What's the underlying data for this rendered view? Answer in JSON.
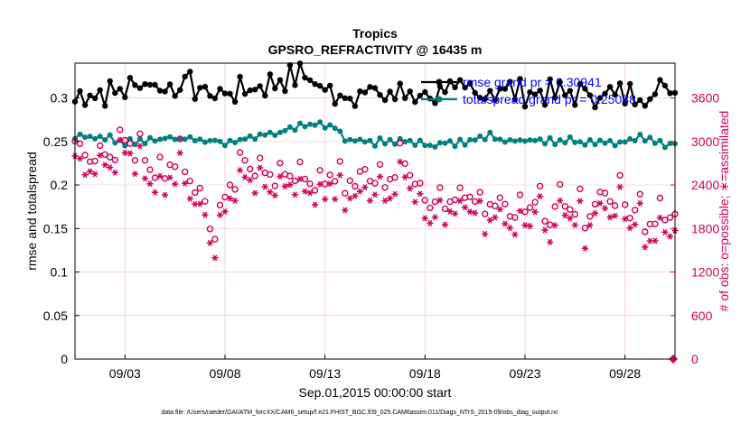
{
  "chart_data": {
    "type": "line",
    "title": "Tropics",
    "subtitle": "GPSRO_REFRACTIVITY @ 16435 m",
    "xlabel": "Sep.01,2015 00:00:00 start",
    "ylabel_left": "rmse and totalspread",
    "ylabel_right": "# of obs: o=possible; ∗=assimilated",
    "footer": "data file: /Users/raeder/DAI/ATM_forcXX/CAM6_setup/f.e21.FHIST_BGC.f09_025.CAM6assim.011/Diags_NTrS_2015-09/obs_diag_output.nc",
    "x_ticks": [
      {
        "day": 3,
        "label": "09/03"
      },
      {
        "day": 8,
        "label": "09/08"
      },
      {
        "day": 13,
        "label": "09/13"
      },
      {
        "day": 18,
        "label": "09/18"
      },
      {
        "day": 23,
        "label": "09/23"
      },
      {
        "day": 28,
        "label": "09/28"
      }
    ],
    "y_left_ticks": [
      "0",
      "0.05",
      "0.1",
      "0.15",
      "0.2",
      "0.25",
      "0.3"
    ],
    "y_right_ticks": [
      "0",
      "600",
      "1200",
      "1800",
      "2400",
      "3000",
      "3600"
    ],
    "xlim": [
      0.5,
      30.5
    ],
    "ylim_left": [
      0,
      0.34
    ],
    "ylim_right": [
      0,
      4080
    ],
    "legend": [
      {
        "name": "rmse grand pr = 0.30941",
        "color": "#000000"
      },
      {
        "name": "totalspread grand pr = 0.25088",
        "color": "#008080"
      }
    ],
    "series": [
      {
        "name": "rmse",
        "color": "#000000",
        "axis": "left",
        "values_per_day_4_cycles": "0.300-0.338, mean 0.309"
      },
      {
        "name": "totalspread",
        "color": "#008080",
        "axis": "left",
        "values_per_day_4_cycles": "0.243-0.272, mean 0.251"
      },
      {
        "name": "possible obs",
        "color": "#d1005a",
        "axis": "right",
        "marker": "circle"
      },
      {
        "name": "assimilated obs",
        "color": "#d1005a",
        "axis": "right",
        "marker": "asterisk"
      }
    ],
    "rmse_anchor": [
      [
        0.5,
        0.3
      ],
      [
        1,
        0.305
      ],
      [
        2,
        0.305
      ],
      [
        3,
        0.31
      ],
      [
        4,
        0.32
      ],
      [
        5,
        0.31
      ],
      [
        6,
        0.318
      ],
      [
        7,
        0.306
      ],
      [
        8,
        0.305
      ],
      [
        9,
        0.31
      ],
      [
        10,
        0.315
      ],
      [
        11,
        0.322
      ],
      [
        12,
        0.328
      ],
      [
        13,
        0.307
      ],
      [
        14,
        0.305
      ],
      [
        15,
        0.306
      ],
      [
        16,
        0.303
      ],
      [
        17,
        0.305
      ],
      [
        18,
        0.305
      ],
      [
        19,
        0.302
      ],
      [
        20,
        0.31
      ],
      [
        21,
        0.307
      ],
      [
        22,
        0.31
      ],
      [
        23,
        0.306
      ],
      [
        24,
        0.306
      ],
      [
        25,
        0.305
      ],
      [
        26,
        0.305
      ],
      [
        27,
        0.304
      ],
      [
        28,
        0.304
      ],
      [
        29,
        0.305
      ],
      [
        30,
        0.31
      ],
      [
        30.5,
        0.31
      ]
    ],
    "spread_anchor": [
      [
        0.5,
        0.258
      ],
      [
        2,
        0.255
      ],
      [
        3,
        0.25
      ],
      [
        4,
        0.252
      ],
      [
        5,
        0.254
      ],
      [
        6,
        0.252
      ],
      [
        7,
        0.252
      ],
      [
        8,
        0.25
      ],
      [
        9,
        0.254
      ],
      [
        10,
        0.257
      ],
      [
        11,
        0.262
      ],
      [
        12,
        0.268
      ],
      [
        13,
        0.268
      ],
      [
        13.5,
        0.266
      ],
      [
        14,
        0.25
      ],
      [
        16,
        0.249
      ],
      [
        17,
        0.25
      ],
      [
        18,
        0.246
      ],
      [
        19,
        0.247
      ],
      [
        20,
        0.25
      ],
      [
        21,
        0.257
      ],
      [
        22,
        0.252
      ],
      [
        23,
        0.251
      ],
      [
        24,
        0.25
      ],
      [
        25,
        0.251
      ],
      [
        26,
        0.25
      ],
      [
        27,
        0.25
      ],
      [
        28,
        0.25
      ],
      [
        29,
        0.255
      ],
      [
        30,
        0.248
      ],
      [
        30.5,
        0.248
      ]
    ],
    "possible_anchor": [
      [
        0.5,
        2900
      ],
      [
        1,
        2800
      ],
      [
        2,
        2750
      ],
      [
        3,
        2900
      ],
      [
        4,
        2650
      ],
      [
        5,
        2600
      ],
      [
        6,
        2650
      ],
      [
        7,
        2050
      ],
      [
        7.3,
        1700
      ],
      [
        7.6,
        1500
      ],
      [
        8,
        2300
      ],
      [
        9,
        2600
      ],
      [
        10,
        2550
      ],
      [
        11,
        2450
      ],
      [
        12,
        2450
      ],
      [
        13,
        2450
      ],
      [
        14,
        2300
      ],
      [
        15,
        2500
      ],
      [
        16,
        2500
      ],
      [
        17,
        2600
      ],
      [
        18,
        2200
      ],
      [
        19,
        2150
      ],
      [
        20,
        2200
      ],
      [
        21,
        2150
      ],
      [
        22,
        2100
      ],
      [
        23,
        2050
      ],
      [
        24,
        2000
      ],
      [
        25,
        2000
      ],
      [
        26,
        1950
      ],
      [
        27,
        2250
      ],
      [
        28,
        2100
      ],
      [
        29,
        1900
      ],
      [
        30,
        2050
      ],
      [
        30.5,
        2000
      ]
    ],
    "assimilated_anchor": [
      [
        0.5,
        2750
      ],
      [
        1,
        2650
      ],
      [
        2,
        2600
      ],
      [
        3,
        2750
      ],
      [
        4,
        2500
      ],
      [
        5,
        2450
      ],
      [
        6,
        2500
      ],
      [
        7,
        1850
      ],
      [
        7.3,
        1550
      ],
      [
        7.6,
        1450
      ],
      [
        8,
        2150
      ],
      [
        9,
        2450
      ],
      [
        10,
        2400
      ],
      [
        11,
        2300
      ],
      [
        12,
        2300
      ],
      [
        13,
        2300
      ],
      [
        14,
        2150
      ],
      [
        15,
        2350
      ],
      [
        16,
        2350
      ],
      [
        17,
        2450
      ],
      [
        18,
        2050
      ],
      [
        19,
        2000
      ],
      [
        20,
        2050
      ],
      [
        21,
        2000
      ],
      [
        22,
        1950
      ],
      [
        23,
        1900
      ],
      [
        24,
        1850
      ],
      [
        25,
        1850
      ],
      [
        26,
        1800
      ],
      [
        27,
        2100
      ],
      [
        28,
        1950
      ],
      [
        29,
        1750
      ],
      [
        30,
        1900
      ],
      [
        30.5,
        1850
      ]
    ]
  }
}
